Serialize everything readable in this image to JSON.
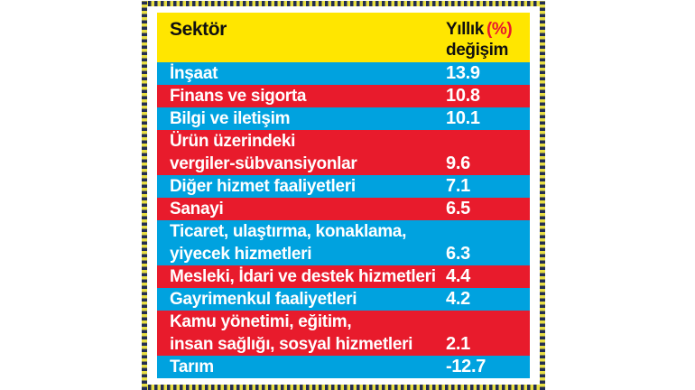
{
  "table": {
    "header": {
      "col1": "Sektör",
      "col2_black": "Yıllık",
      "col2_red": "(%)",
      "col2_line2": "değişim"
    },
    "rows": [
      {
        "label": "İnşaat",
        "value": "13.9",
        "color": "blue"
      },
      {
        "label": "Finans ve sigorta",
        "value": "10.8",
        "color": "red"
      },
      {
        "label": "Bilgi ve iletişim",
        "value": "10.1",
        "color": "blue"
      },
      {
        "label": "Ürün üzerindeki\nvergiler-sübvansiyonlar",
        "value": "9.6",
        "color": "red"
      },
      {
        "label": "Diğer hizmet faaliyetleri",
        "value": "7.1",
        "color": "blue"
      },
      {
        "label": "Sanayi",
        "value": "6.5",
        "color": "red"
      },
      {
        "label": "Ticaret, ulaştırma, konaklama,\nyiyecek hizmetleri",
        "value": "6.3",
        "color": "blue"
      },
      {
        "label": "Mesleki, İdari ve destek hizmetleri",
        "value": "4.4",
        "color": "red"
      },
      {
        "label": "Gayrimenkul faaliyetleri",
        "value": "4.2",
        "color": "blue"
      },
      {
        "label": "Kamu yönetimi, eğitim,\ninsan sağlığı, sosyal hizmetleri",
        "value": "2.1",
        "color": "red"
      },
      {
        "label": "Tarım",
        "value": "-12.7",
        "color": "blue"
      }
    ]
  },
  "colors": {
    "header_yellow": "#ffe600",
    "row_blue": "#00a2df",
    "row_red": "#e81b2c",
    "accent_red": "#e8192c",
    "border_navy": "#232d52",
    "border_yellow": "#e6dd45",
    "header_text": "#101010",
    "row_text": "#ffffff"
  },
  "chart_data": {
    "type": "table",
    "title": "Sektör - Yıllık (%) değişim",
    "columns": [
      "Sektör",
      "Yıllık (%) değişim"
    ],
    "rows": [
      [
        "İnşaat",
        13.9
      ],
      [
        "Finans ve sigorta",
        10.8
      ],
      [
        "Bilgi ve iletişim",
        10.1
      ],
      [
        "Ürün üzerindeki vergiler-sübvansiyonlar",
        9.6
      ],
      [
        "Diğer hizmet faaliyetleri",
        7.1
      ],
      [
        "Sanayi",
        6.5
      ],
      [
        "Ticaret, ulaştırma, konaklama, yiyecek hizmetleri",
        6.3
      ],
      [
        "Mesleki, İdari ve destek hizmetleri",
        4.4
      ],
      [
        "Gayrimenkul faaliyetleri",
        4.2
      ],
      [
        "Kamu yönetimi, eğitim, insan sağlığı, sosyal hizmetleri",
        2.1
      ],
      [
        "Tarım",
        -12.7
      ]
    ]
  }
}
